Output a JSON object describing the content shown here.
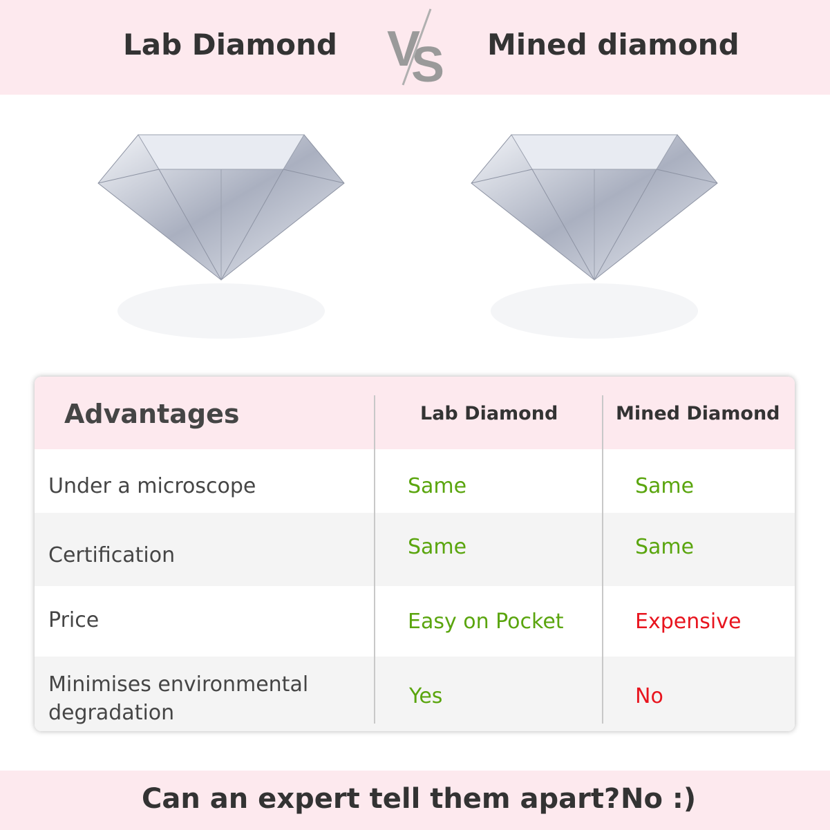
{
  "header": {
    "left_title": "Lab Diamond",
    "vs": "VS",
    "right_title": "Mined diamond"
  },
  "table": {
    "headers": [
      "Advantages",
      "Lab Diamond",
      "Mined Diamond"
    ],
    "rows": [
      {
        "label": "Under a microscope",
        "lab": "Same",
        "mined": "Same"
      },
      {
        "label": "Certification",
        "lab": "Same",
        "mined": "Same"
      },
      {
        "label": "Price",
        "lab": "Easy on Pocket",
        "mined": "Expensive"
      },
      {
        "label": "Minimises environmental degradation",
        "lab": "Yes",
        "mined": "No"
      }
    ]
  },
  "footer": {
    "question": "Can an expert tell them apart?",
    "answer": "No :)"
  },
  "colors": {
    "band": "#fde9ee",
    "positive": "#5aa50e",
    "negative": "#e8141e",
    "row_alt": "#f4f4f4"
  }
}
